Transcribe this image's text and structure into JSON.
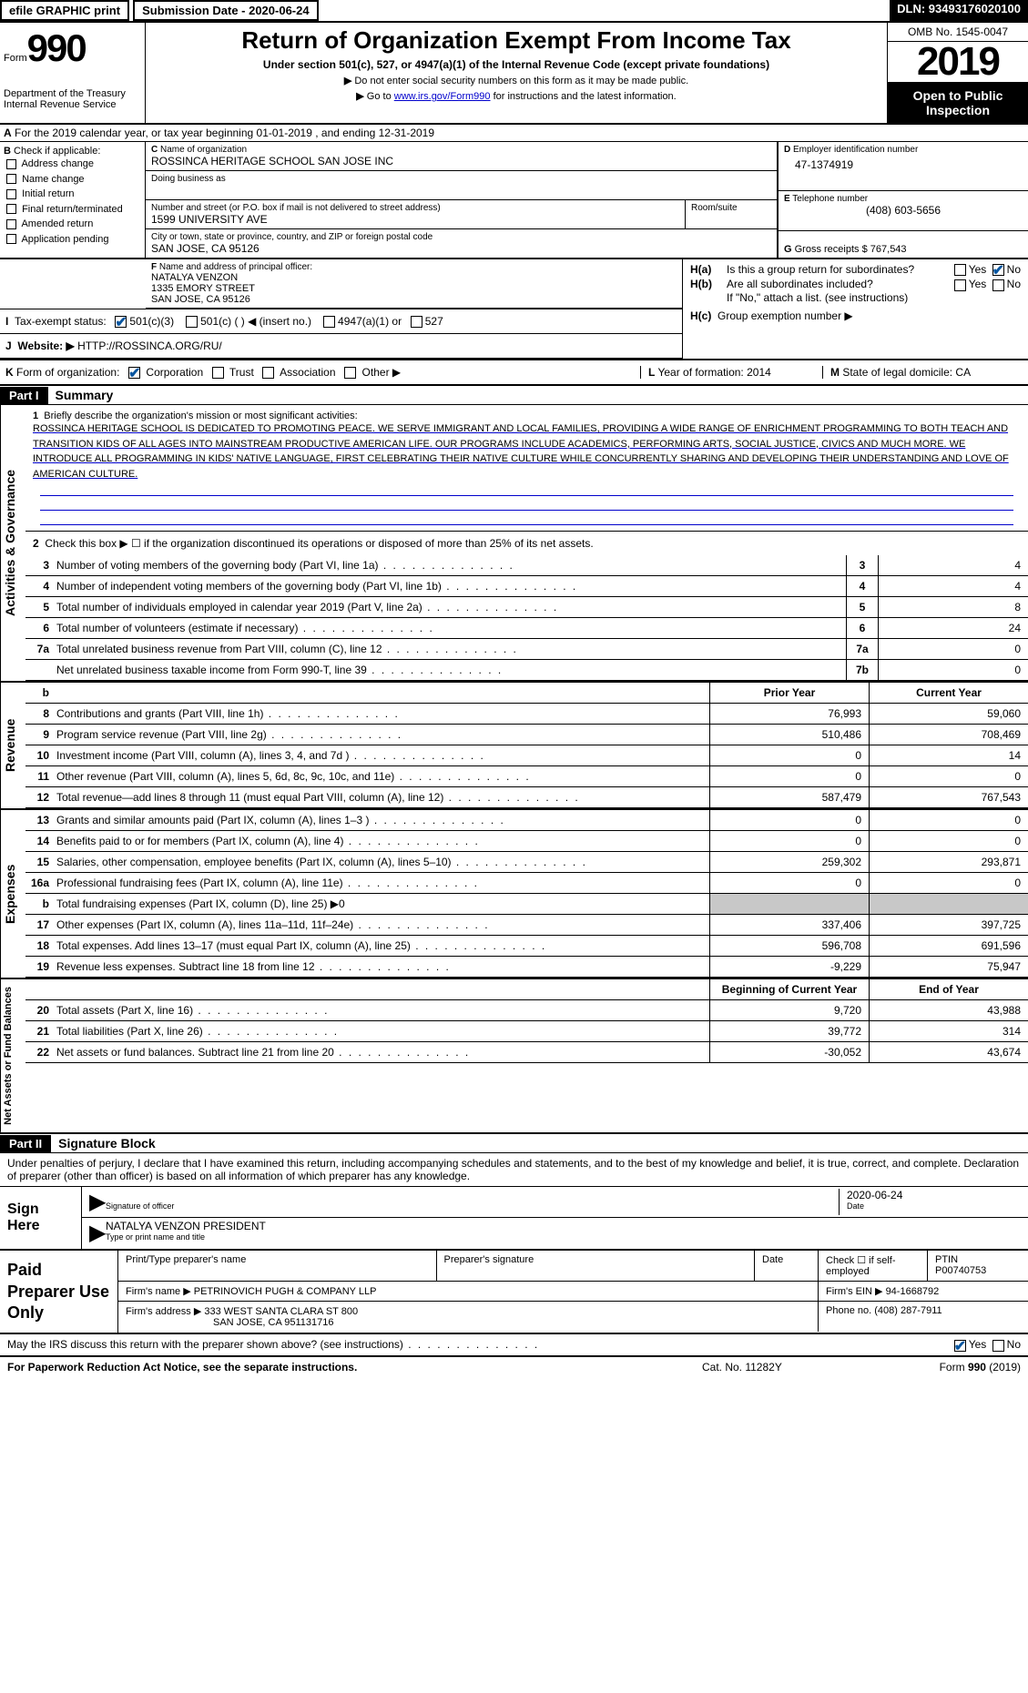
{
  "top": {
    "efile": "efile GRAPHIC print",
    "submission": "Submission Date - 2020-06-24",
    "dln": "DLN: 93493176020100"
  },
  "header": {
    "form_label": "Form",
    "form_num": "990",
    "dept": "Department of the Treasury",
    "irs": "Internal Revenue Service",
    "title": "Return of Organization Exempt From Income Tax",
    "subtitle": "Under section 501(c), 527, or 4947(a)(1) of the Internal Revenue Code (except private foundations)",
    "note1": "Do not enter social security numbers on this form as it may be made public.",
    "note2_pre": "Go to ",
    "note2_link": "www.irs.gov/Form990",
    "note2_post": " for instructions and the latest information.",
    "omb": "OMB No. 1545-0047",
    "year": "2019",
    "inspection": "Open to Public Inspection"
  },
  "section_a": "For the 2019 calendar year, or tax year beginning 01-01-2019   , and ending 12-31-2019",
  "b": {
    "label": "Check if applicable:",
    "opts": [
      "Address change",
      "Name change",
      "Initial return",
      "Final return/terminated",
      "Amended return",
      "Application pending"
    ]
  },
  "c": {
    "name_label": "Name of organization",
    "name": "ROSSINCA HERITAGE SCHOOL SAN JOSE INC",
    "dba_label": "Doing business as",
    "addr_label": "Number and street (or P.O. box if mail is not delivered to street address)",
    "addr": "1599 UNIVERSITY AVE",
    "room_label": "Room/suite",
    "city_label": "City or town, state or province, country, and ZIP or foreign postal code",
    "city": "SAN JOSE, CA  95126"
  },
  "d": {
    "label": "Employer identification number",
    "val": "47-1374919"
  },
  "e": {
    "label": "Telephone number",
    "val": "(408) 603-5656"
  },
  "g": {
    "label": "Gross receipts $",
    "val": "767,543"
  },
  "f": {
    "label": "Name and address of principal officer:",
    "name": "NATALYA VENZON",
    "addr1": "1335 EMORY STREET",
    "addr2": "SAN JOSE, CA  95126"
  },
  "h": {
    "a": "Is this a group return for subordinates?",
    "b": "Are all subordinates included?",
    "b_note": "If \"No,\" attach a list. (see instructions)",
    "c": "Group exemption number ▶"
  },
  "i": {
    "label": "Tax-exempt status:",
    "opts": [
      "501(c)(3)",
      "501(c) (  ) ◀ (insert no.)",
      "4947(a)(1) or",
      "527"
    ]
  },
  "j": {
    "label": "Website: ▶",
    "val": "HTTP://ROSSINCA.ORG/RU/"
  },
  "k": {
    "label": "Form of organization:",
    "opts": [
      "Corporation",
      "Trust",
      "Association",
      "Other ▶"
    ]
  },
  "l": {
    "label": "Year of formation:",
    "val": "2014"
  },
  "m": {
    "label": "State of legal domicile:",
    "val": "CA"
  },
  "part1": {
    "header": "Part I",
    "title": "Summary",
    "line1_label": "Briefly describe the organization's mission or most significant activities:",
    "mission": "ROSSINCA HERITAGE SCHOOL IS DEDICATED TO PROMOTING PEACE. WE SERVE IMMIGRANT AND LOCAL FAMILIES, PROVIDING A WIDE RANGE OF ENRICHMENT PROGRAMMING TO BOTH TEACH AND TRANSITION KIDS OF ALL AGES INTO MAINSTREAM PRODUCTIVE AMERICAN LIFE. OUR PROGRAMS INCLUDE ACADEMICS, PERFORMING ARTS, SOCIAL JUSTICE, CIVICS AND MUCH MORE. WE INTRODUCE ALL PROGRAMMING IN KIDS' NATIVE LANGUAGE, FIRST CELEBRATING THEIR NATIVE CULTURE WHILE CONCURRENTLY SHARING AND DEVELOPING THEIR UNDERSTANDING AND LOVE OF AMERICAN CULTURE.",
    "line2": "Check this box ▶ ☐ if the organization discontinued its operations or disposed of more than 25% of its net assets.",
    "vert_label": "Activities & Governance",
    "rows": [
      {
        "n": "3",
        "desc": "Number of voting members of the governing body (Part VI, line 1a)",
        "box": "3",
        "val": "4"
      },
      {
        "n": "4",
        "desc": "Number of independent voting members of the governing body (Part VI, line 1b)",
        "box": "4",
        "val": "4"
      },
      {
        "n": "5",
        "desc": "Total number of individuals employed in calendar year 2019 (Part V, line 2a)",
        "box": "5",
        "val": "8"
      },
      {
        "n": "6",
        "desc": "Total number of volunteers (estimate if necessary)",
        "box": "6",
        "val": "24"
      },
      {
        "n": "7a",
        "desc": "Total unrelated business revenue from Part VIII, column (C), line 12",
        "box": "7a",
        "val": "0"
      },
      {
        "n": "",
        "desc": "Net unrelated business taxable income from Form 990-T, line 39",
        "box": "7b",
        "val": "0"
      }
    ]
  },
  "revenue": {
    "label": "Revenue",
    "header_b": "b",
    "py": "Prior Year",
    "cy": "Current Year",
    "rows": [
      {
        "n": "8",
        "desc": "Contributions and grants (Part VIII, line 1h)",
        "py": "76,993",
        "cy": "59,060"
      },
      {
        "n": "9",
        "desc": "Program service revenue (Part VIII, line 2g)",
        "py": "510,486",
        "cy": "708,469"
      },
      {
        "n": "10",
        "desc": "Investment income (Part VIII, column (A), lines 3, 4, and 7d )",
        "py": "0",
        "cy": "14"
      },
      {
        "n": "11",
        "desc": "Other revenue (Part VIII, column (A), lines 5, 6d, 8c, 9c, 10c, and 11e)",
        "py": "0",
        "cy": "0"
      },
      {
        "n": "12",
        "desc": "Total revenue—add lines 8 through 11 (must equal Part VIII, column (A), line 12)",
        "py": "587,479",
        "cy": "767,543"
      }
    ]
  },
  "expenses": {
    "label": "Expenses",
    "rows": [
      {
        "n": "13",
        "desc": "Grants and similar amounts paid (Part IX, column (A), lines 1–3 )",
        "py": "0",
        "cy": "0"
      },
      {
        "n": "14",
        "desc": "Benefits paid to or for members (Part IX, column (A), line 4)",
        "py": "0",
        "cy": "0"
      },
      {
        "n": "15",
        "desc": "Salaries, other compensation, employee benefits (Part IX, column (A), lines 5–10)",
        "py": "259,302",
        "cy": "293,871"
      },
      {
        "n": "16a",
        "desc": "Professional fundraising fees (Part IX, column (A), line 11e)",
        "py": "0",
        "cy": "0"
      },
      {
        "n": "b",
        "desc": "Total fundraising expenses (Part IX, column (D), line 25) ▶0",
        "py": "",
        "cy": "",
        "shaded": true
      },
      {
        "n": "17",
        "desc": "Other expenses (Part IX, column (A), lines 11a–11d, 11f–24e)",
        "py": "337,406",
        "cy": "397,725"
      },
      {
        "n": "18",
        "desc": "Total expenses. Add lines 13–17 (must equal Part IX, column (A), line 25)",
        "py": "596,708",
        "cy": "691,596"
      },
      {
        "n": "19",
        "desc": "Revenue less expenses. Subtract line 18 from line 12",
        "py": "-9,229",
        "cy": "75,947"
      }
    ]
  },
  "netassets": {
    "label": "Net Assets or Fund Balances",
    "py": "Beginning of Current Year",
    "cy": "End of Year",
    "rows": [
      {
        "n": "20",
        "desc": "Total assets (Part X, line 16)",
        "py": "9,720",
        "cy": "43,988"
      },
      {
        "n": "21",
        "desc": "Total liabilities (Part X, line 26)",
        "py": "39,772",
        "cy": "314"
      },
      {
        "n": "22",
        "desc": "Net assets or fund balances. Subtract line 21 from line 20",
        "py": "-30,052",
        "cy": "43,674"
      }
    ]
  },
  "part2": {
    "header": "Part II",
    "title": "Signature Block",
    "declaration": "Under penalties of perjury, I declare that I have examined this return, including accompanying schedules and statements, and to the best of my knowledge and belief, it is true, correct, and complete. Declaration of preparer (other than officer) is based on all information of which preparer has any knowledge.",
    "sign_here": "Sign Here",
    "sig_officer": "Signature of officer",
    "date": "Date",
    "date_val": "2020-06-24",
    "name_title": "NATALYA VENZON  PRESIDENT",
    "type_name": "Type or print name and title"
  },
  "paid": {
    "label": "Paid Preparer Use Only",
    "print_name": "Print/Type preparer's name",
    "prep_sig": "Preparer's signature",
    "date": "Date",
    "check": "Check ☐ if self-employed",
    "ptin_label": "PTIN",
    "ptin": "P00740753",
    "firm_name_label": "Firm's name    ▶",
    "firm_name": "PETRINOVICH PUGH & COMPANY LLP",
    "firm_ein_label": "Firm's EIN ▶",
    "firm_ein": "94-1668792",
    "firm_addr_label": "Firm's address ▶",
    "firm_addr1": "333 WEST SANTA CLARA ST 800",
    "firm_addr2": "SAN JOSE, CA  951131716",
    "phone_label": "Phone no.",
    "phone": "(408) 287-7911"
  },
  "footer": {
    "discuss": "May the IRS discuss this return with the preparer shown above? (see instructions)",
    "yes": "Yes",
    "no": "No",
    "paperwork": "For Paperwork Reduction Act Notice, see the separate instructions.",
    "cat": "Cat. No. 11282Y",
    "form": "Form 990 (2019)"
  }
}
